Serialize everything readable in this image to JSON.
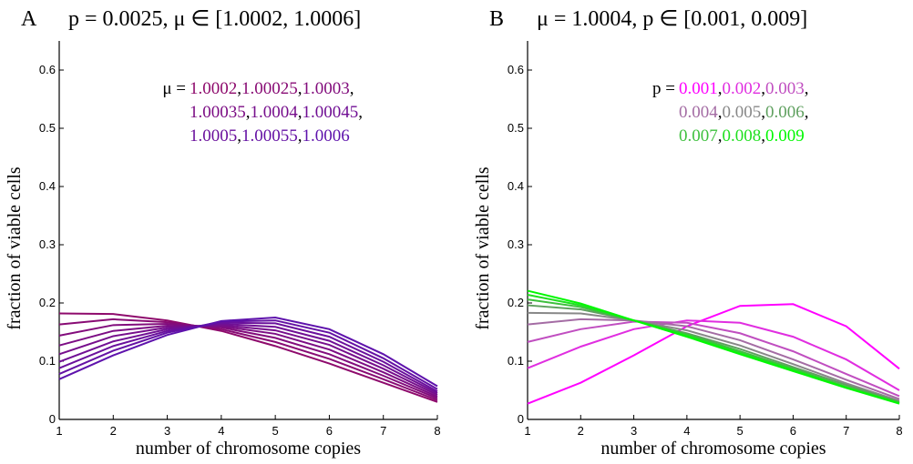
{
  "chart_data": [
    {
      "type": "line",
      "panel_label": "A",
      "title": "p = 0.0025,  μ ∈ [1.0002, 1.0006]",
      "x_label": "number of chromosome copies",
      "y_label": "fraction of viable cells",
      "x": [
        1,
        2,
        3,
        4,
        5,
        6,
        7,
        8
      ],
      "xlim": [
        1,
        8
      ],
      "xticks": [
        1,
        2,
        3,
        4,
        5,
        6,
        7,
        8
      ],
      "ylim": [
        0,
        0.65
      ],
      "yticks": [
        0,
        0.1,
        0.2,
        0.3,
        0.4,
        0.5,
        0.6
      ],
      "legend_title": "μ =",
      "legend_separator": ",",
      "series": [
        {
          "name": "1.0002",
          "color": "#8e0a6c",
          "values": [
            0.182,
            0.181,
            0.17,
            0.152,
            0.126,
            0.096,
            0.063,
            0.03
          ]
        },
        {
          "name": "1.00025",
          "color": "#880b74",
          "values": [
            0.163,
            0.172,
            0.167,
            0.155,
            0.133,
            0.104,
            0.069,
            0.033
          ]
        },
        {
          "name": "1.0003",
          "color": "#820c7c",
          "values": [
            0.144,
            0.162,
            0.164,
            0.158,
            0.14,
            0.112,
            0.075,
            0.036
          ]
        },
        {
          "name": "1.00035",
          "color": "#7c0d84",
          "values": [
            0.127,
            0.152,
            0.161,
            0.16,
            0.147,
            0.12,
            0.081,
            0.039
          ]
        },
        {
          "name": "1.0004",
          "color": "#760e8c",
          "values": [
            0.112,
            0.143,
            0.158,
            0.162,
            0.153,
            0.128,
            0.087,
            0.042
          ]
        },
        {
          "name": "1.00045",
          "color": "#700f94",
          "values": [
            0.099,
            0.134,
            0.155,
            0.164,
            0.159,
            0.135,
            0.093,
            0.045
          ]
        },
        {
          "name": "1.0005",
          "color": "#6a109c",
          "values": [
            0.088,
            0.126,
            0.152,
            0.166,
            0.165,
            0.142,
            0.099,
            0.048
          ]
        },
        {
          "name": "1.00055",
          "color": "#6411a4",
          "values": [
            0.078,
            0.118,
            0.149,
            0.168,
            0.17,
            0.149,
            0.105,
            0.052
          ]
        },
        {
          "name": "1.0006",
          "color": "#5e12ac",
          "values": [
            0.069,
            0.11,
            0.145,
            0.169,
            0.175,
            0.155,
            0.112,
            0.057
          ]
        }
      ]
    },
    {
      "type": "line",
      "panel_label": "B",
      "title": "μ = 1.0004,  p ∈ [0.001, 0.009]",
      "x_label": "number of chromosome copies",
      "y_label": "fraction of viable cells",
      "x": [
        1,
        2,
        3,
        4,
        5,
        6,
        7,
        8
      ],
      "xlim": [
        1,
        8
      ],
      "xticks": [
        1,
        2,
        3,
        4,
        5,
        6,
        7,
        8
      ],
      "ylim": [
        0,
        0.65
      ],
      "yticks": [
        0,
        0.1,
        0.2,
        0.3,
        0.4,
        0.5,
        0.6
      ],
      "legend_title": "p =",
      "legend_separator": ",",
      "series": [
        {
          "name": "0.001",
          "color": "#ff00ff",
          "values": [
            0.027,
            0.063,
            0.11,
            0.16,
            0.195,
            0.198,
            0.16,
            0.087
          ]
        },
        {
          "name": "0.002",
          "color": "#e02ee0",
          "values": [
            0.088,
            0.125,
            0.155,
            0.17,
            0.166,
            0.142,
            0.103,
            0.05
          ]
        },
        {
          "name": "0.003",
          "color": "#c04ec0",
          "values": [
            0.133,
            0.155,
            0.168,
            0.166,
            0.148,
            0.117,
            0.078,
            0.04
          ]
        },
        {
          "name": "0.004",
          "color": "#a46ca4",
          "values": [
            0.163,
            0.172,
            0.17,
            0.16,
            0.136,
            0.103,
            0.068,
            0.035
          ]
        },
        {
          "name": "0.005",
          "color": "#888888",
          "values": [
            0.183,
            0.182,
            0.17,
            0.153,
            0.127,
            0.095,
            0.062,
            0.032
          ]
        },
        {
          "name": "0.006",
          "color": "#5fa05f",
          "values": [
            0.196,
            0.189,
            0.17,
            0.148,
            0.121,
            0.09,
            0.059,
            0.03
          ]
        },
        {
          "name": "0.007",
          "color": "#3ec03e",
          "values": [
            0.206,
            0.193,
            0.17,
            0.146,
            0.117,
            0.087,
            0.056,
            0.029
          ]
        },
        {
          "name": "0.008",
          "color": "#20e020",
          "values": [
            0.214,
            0.196,
            0.17,
            0.144,
            0.114,
            0.085,
            0.055,
            0.028
          ]
        },
        {
          "name": "0.009",
          "color": "#00f800",
          "values": [
            0.221,
            0.199,
            0.17,
            0.142,
            0.112,
            0.083,
            0.054,
            0.027
          ]
        }
      ]
    }
  ]
}
